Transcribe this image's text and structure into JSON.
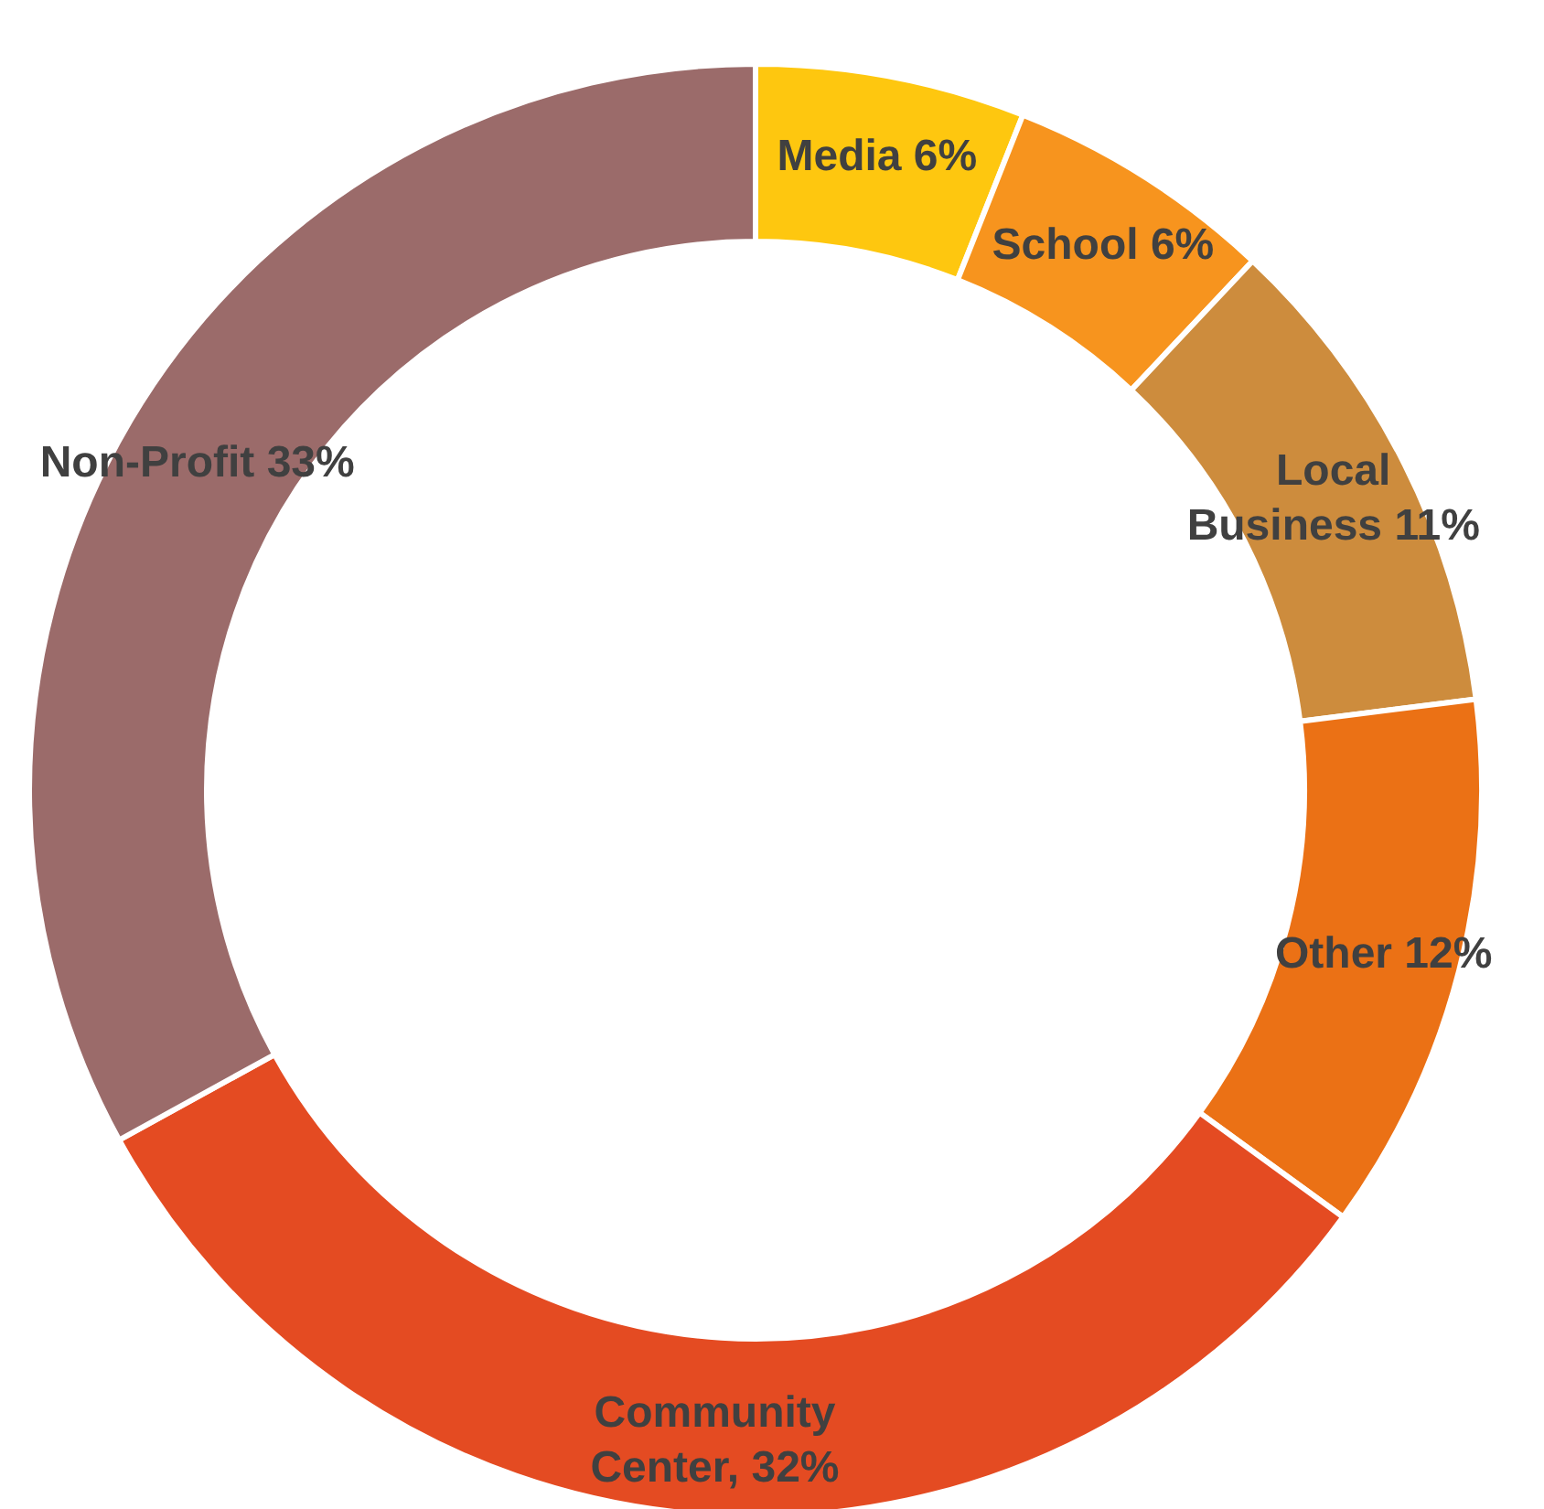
{
  "chart_data": {
    "type": "donut",
    "categories": [
      "Media",
      "School",
      "Local Business",
      "Other",
      "Community Center",
      "Non-Profit"
    ],
    "values": [
      6,
      6,
      11,
      12,
      32,
      33
    ],
    "colors": [
      "#fec70f",
      "#f7941e",
      "#cd8c3d",
      "#eb7115",
      "#e44b22",
      "#9b6b6a"
    ],
    "value_labels": [
      "6%",
      "6%",
      "11%",
      "12%",
      ", 32%",
      "33%"
    ],
    "legend": false
  }
}
